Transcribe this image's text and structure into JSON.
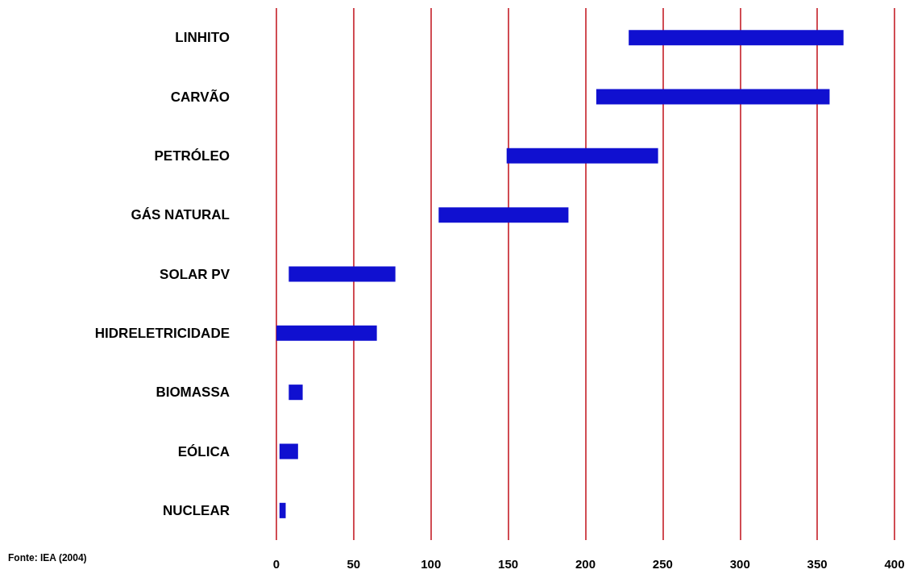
{
  "chart_data": {
    "type": "bar",
    "orientation": "horizontal",
    "categories": [
      "LINHITO",
      "CARVÃO",
      "PETRÓLEO",
      "GÁS NATURAL",
      "SOLAR PV",
      "HIDRELETRICIDADE",
      "BIOMASSA",
      "EÓLICA",
      "NUCLEAR"
    ],
    "base": [
      228,
      207,
      149,
      105,
      8,
      0,
      8,
      2,
      2
    ],
    "values": [
      139,
      151,
      98,
      84,
      69,
      65,
      9,
      12,
      4
    ],
    "color": "#1010d0",
    "xlim": [
      0,
      400
    ],
    "xticks": [
      0,
      50,
      100,
      150,
      200,
      250,
      300,
      350,
      400
    ],
    "grid": "x",
    "annotations": [
      "Fonte: IEA (2004)"
    ]
  }
}
